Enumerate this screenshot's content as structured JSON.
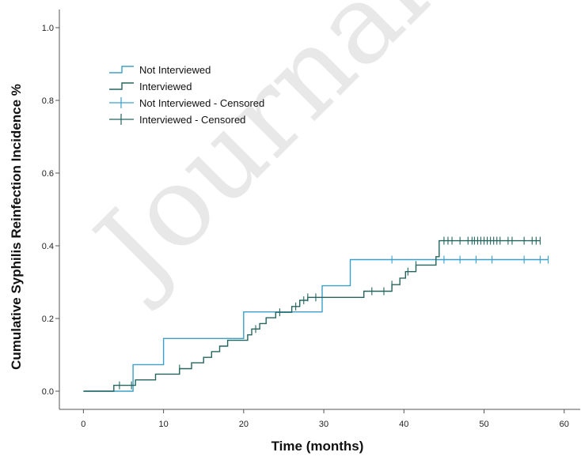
{
  "colors": {
    "not_interviewed": "#3ba0c9",
    "interviewed": "#24655e",
    "axis": "#555555"
  },
  "watermark_text": "Journal",
  "chart_data": {
    "type": "line",
    "subtype": "kaplan-meier step",
    "title": "",
    "xlabel": "Time (months)",
    "ylabel": "Cumulative Syphilis Reinfection Incidence %",
    "xlim": [
      -3,
      62
    ],
    "ylim": [
      -0.05,
      1.05
    ],
    "xticks": [
      0,
      10,
      20,
      30,
      40,
      50,
      60
    ],
    "yticks": [
      "0.0",
      "0.2",
      "0.4",
      "0.6",
      "0.8",
      "1.0"
    ],
    "grid": false,
    "legend_position": "top-left",
    "legend": [
      "Not Interviewed",
      "Interviewed",
      "Not Interviewed - Censored",
      "Interviewed - Censored"
    ],
    "series": [
      {
        "name": "Not Interviewed",
        "color": "#3ba0c9",
        "steps": [
          [
            0,
            0.0
          ],
          [
            6.2,
            0.073
          ],
          [
            10,
            0.145
          ],
          [
            20,
            0.218
          ],
          [
            29.8,
            0.29
          ],
          [
            33.3,
            0.362
          ],
          [
            58,
            0.362
          ]
        ],
        "censored": [
          38.5,
          45,
          47,
          49,
          51,
          55,
          57,
          58
        ]
      },
      {
        "name": "Interviewed",
        "color": "#24655e",
        "steps": [
          [
            0,
            0.0
          ],
          [
            3.8,
            0.016
          ],
          [
            6.5,
            0.031
          ],
          [
            9,
            0.047
          ],
          [
            12,
            0.062
          ],
          [
            13.5,
            0.078
          ],
          [
            15,
            0.093
          ],
          [
            16,
            0.109
          ],
          [
            17,
            0.124
          ],
          [
            18,
            0.14
          ],
          [
            20.5,
            0.155
          ],
          [
            21,
            0.171
          ],
          [
            22,
            0.186
          ],
          [
            22.8,
            0.202
          ],
          [
            24,
            0.217
          ],
          [
            26,
            0.233
          ],
          [
            27,
            0.25
          ],
          [
            28,
            0.258
          ],
          [
            35,
            0.275
          ],
          [
            38.5,
            0.293
          ],
          [
            39.5,
            0.311
          ],
          [
            40.2,
            0.329
          ],
          [
            41.5,
            0.347
          ],
          [
            44,
            0.37
          ],
          [
            44.4,
            0.414
          ],
          [
            57,
            0.414
          ]
        ],
        "censored": [
          4.5,
          6,
          12,
          21.5,
          24.5,
          26.5,
          27.5,
          28,
          29,
          36,
          37.5,
          38.5,
          40.5,
          41.5,
          45,
          45.5,
          46,
          47,
          48,
          48.5,
          48.8,
          49.2,
          49.6,
          50,
          50.4,
          50.8,
          51.2,
          51.6,
          52,
          53,
          53.5,
          55,
          56,
          56.5,
          57
        ]
      }
    ]
  }
}
